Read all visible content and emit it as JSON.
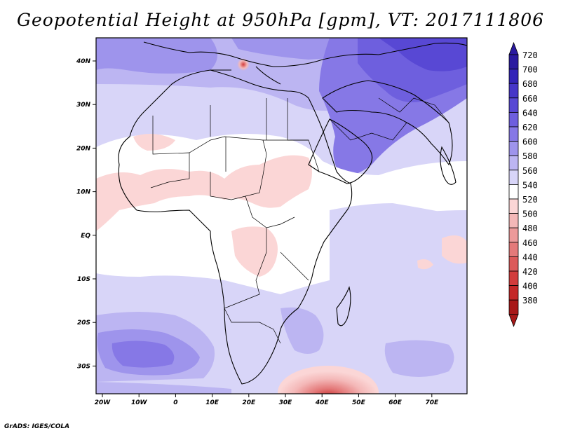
{
  "title": "Geopotential Height at 950hPa [gpm], VT: 2017111806",
  "credit": "GrADS: IGES/COLA",
  "map": {
    "lon_labels": [
      "20W",
      "10W",
      "0",
      "10E",
      "20E",
      "30E",
      "40E",
      "50E",
      "60E",
      "70E"
    ],
    "lat_labels": [
      "40N",
      "30N",
      "20N",
      "10N",
      "EQ",
      "10S",
      "20S",
      "30S"
    ],
    "lon_range": [
      -22,
      80
    ],
    "lat_range": [
      -37,
      45
    ]
  },
  "colorbar": {
    "levels": [
      720,
      700,
      680,
      660,
      640,
      620,
      600,
      580,
      560,
      540,
      520,
      500,
      480,
      460,
      440,
      420,
      400,
      380
    ],
    "colors": [
      "#2a1aa0",
      "#3324b8",
      "#4636c8",
      "#5848d4",
      "#6e5fde",
      "#8678e6",
      "#9e94ec",
      "#bcb5f2",
      "#d8d5f8",
      "#ffffff",
      "#fbd6d6",
      "#f4b8b8",
      "#ec9a9a",
      "#e47a7a",
      "#dc5a5a",
      "#d23c3c",
      "#c42828",
      "#a81818"
    ],
    "top_arrow_color": "#2a1aa0",
    "bottom_arrow_color": "#a81818"
  }
}
